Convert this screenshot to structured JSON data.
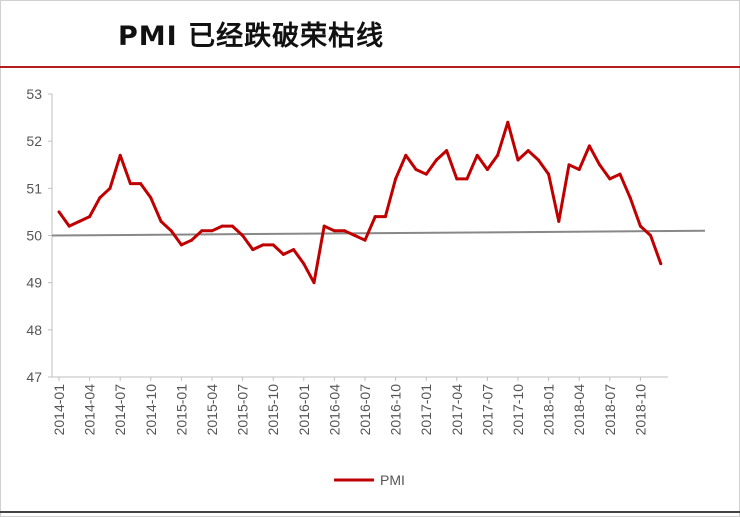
{
  "chart_data": {
    "type": "line",
    "title": "PMI 已经跌破荣枯线",
    "xlabel": "",
    "ylabel": "",
    "ylim": [
      47,
      53
    ],
    "yticks": [
      47,
      48,
      49,
      50,
      51,
      52,
      53
    ],
    "xtick_labels": [
      "2014-01",
      "2014-04",
      "2014-07",
      "2014-10",
      "2015-01",
      "2015-04",
      "2015-07",
      "2015-10",
      "2016-01",
      "2016-04",
      "2016-07",
      "2016-10",
      "2017-01",
      "2017-04",
      "2017-07",
      "2017-10",
      "2018-01",
      "2018-04",
      "2018-07",
      "2018-10"
    ],
    "legend": {
      "position": "bottom",
      "entries": [
        "PMI"
      ]
    },
    "colors": {
      "series": "#c00000",
      "reference": "#888888",
      "axis": "#bfbfbf",
      "rule": "#b51d1d"
    },
    "reference_line": {
      "start": 50.0,
      "end": 50.1
    },
    "series": [
      {
        "name": "PMI",
        "x": [
          "2014-01",
          "2014-02",
          "2014-03",
          "2014-04",
          "2014-05",
          "2014-06",
          "2014-07",
          "2014-08",
          "2014-09",
          "2014-10",
          "2014-11",
          "2014-12",
          "2015-01",
          "2015-02",
          "2015-03",
          "2015-04",
          "2015-05",
          "2015-06",
          "2015-07",
          "2015-08",
          "2015-09",
          "2015-10",
          "2015-11",
          "2015-12",
          "2016-01",
          "2016-02",
          "2016-03",
          "2016-04",
          "2016-05",
          "2016-06",
          "2016-07",
          "2016-08",
          "2016-09",
          "2016-10",
          "2016-11",
          "2016-12",
          "2017-01",
          "2017-02",
          "2017-03",
          "2017-04",
          "2017-05",
          "2017-06",
          "2017-07",
          "2017-08",
          "2017-09",
          "2017-10",
          "2017-11",
          "2017-12",
          "2018-01",
          "2018-02",
          "2018-03",
          "2018-04",
          "2018-05",
          "2018-06",
          "2018-07",
          "2018-08",
          "2018-09",
          "2018-10",
          "2018-11",
          "2018-12"
        ],
        "values": [
          50.5,
          50.2,
          50.3,
          50.4,
          50.8,
          51.0,
          51.7,
          51.1,
          51.1,
          50.8,
          50.3,
          50.1,
          49.8,
          49.9,
          50.1,
          50.1,
          50.2,
          50.2,
          50.0,
          49.7,
          49.8,
          49.8,
          49.6,
          49.7,
          49.4,
          49.0,
          50.2,
          50.1,
          50.1,
          50.0,
          49.9,
          50.4,
          50.4,
          51.2,
          51.7,
          51.4,
          51.3,
          51.6,
          51.8,
          51.2,
          51.2,
          51.7,
          51.4,
          51.7,
          52.4,
          51.6,
          51.8,
          51.6,
          51.3,
          50.3,
          51.5,
          51.4,
          51.9,
          51.5,
          51.2,
          51.3,
          50.8,
          50.2,
          50.0,
          49.4
        ]
      }
    ]
  }
}
